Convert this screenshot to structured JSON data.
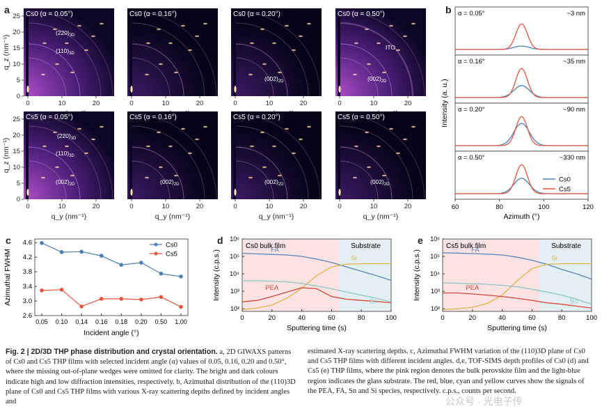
{
  "figure": {
    "panel_labels": {
      "a": "a",
      "b": "b",
      "c": "c",
      "d": "d",
      "e": "e"
    },
    "giwaxs": {
      "x_tick_labels": [
        "0",
        "10",
        "20"
      ],
      "y_tick_labels": [
        "0",
        "5",
        "10",
        "15",
        "20",
        "25"
      ],
      "xlabel": "q_y (nm⁻¹)",
      "ylabel": "q_z (nm⁻¹)",
      "top_row_titles": [
        "Cs0 (α = 0.05°)",
        "Cs0 (α = 0.16°)",
        "Cs0 (α = 0.20°)",
        "Cs0 (α = 0.50°)"
      ],
      "bottom_row_titles": [
        "Cs5 (α = 0.05°)",
        "Cs5 (α = 0.16°)",
        "Cs5 (α = 0.20°)",
        "Cs5 (α = 0.50°)"
      ],
      "annotations": {
        "a220": "(220)3D",
        "a110": "(110)3D",
        "a002": "(002)2D",
        "ito": "ITO"
      }
    },
    "azimuth": {
      "xlabel": "Azimuth (°)",
      "ylabel": "Intensity (a. u.)",
      "x_ticks": [
        "60",
        "80",
        "100",
        "120"
      ],
      "panels": [
        {
          "alpha": "α = 0.05°",
          "depth": "~3 nm"
        },
        {
          "alpha": "α = 0.16°",
          "depth": "~35 nm"
        },
        {
          "alpha": "α = 0.20°",
          "depth": "~90 nm"
        },
        {
          "alpha": "α = 0.50°",
          "depth": "~330 nm"
        }
      ],
      "legend": [
        "Cs0",
        "Cs5"
      ],
      "colors": {
        "Cs0": "#4a7fb8",
        "Cs5": "#e8533c"
      }
    },
    "fwhm_chart": {
      "ylabel": "Azimuthal FWHM",
      "xlabel": "Incident angle (°)",
      "x_ticks": [
        "0.05",
        "0.10",
        "0.14",
        "0.16",
        "0.18",
        "0.20",
        "0.50",
        "1.00"
      ],
      "y_ticks": [
        "2.6",
        "3.0",
        "3.4",
        "3.8",
        "4.2",
        "4.6"
      ]
    },
    "tofsims": [
      {
        "label": "Cs0 bulk film",
        "substrate": "Substrate"
      },
      {
        "label": "Cs5 bulk film",
        "substrate": "Substrate"
      }
    ],
    "tofsims_axes": {
      "xlabel": "Sputtering time (s)",
      "ylabel": "Intensity (c.p.s.)",
      "x_ticks": [
        "0",
        "20",
        "40",
        "60",
        "80",
        "100"
      ],
      "y_ticks": [
        "10²",
        "10³",
        "10⁴",
        "10⁵",
        "10⁶"
      ],
      "species": {
        "FA": "FA",
        "Si": "Si",
        "PEA": "PEA",
        "Sn": "Sn"
      }
    }
  },
  "chart_data": [
    {
      "type": "line",
      "title": "",
      "xlabel": "Incident angle (°)",
      "ylabel": "Azimuthal FWHM",
      "categories": [
        "0.05",
        "0.10",
        "0.14",
        "0.16",
        "0.18",
        "0.20",
        "0.50",
        "1.00"
      ],
      "ylim": [
        2.6,
        4.7
      ],
      "legend": "top-right",
      "series": [
        {
          "name": "Cs0",
          "color": "#4a7fb8",
          "values": [
            4.59,
            4.34,
            4.35,
            4.24,
            3.99,
            4.05,
            3.75,
            3.67
          ]
        },
        {
          "name": "Cs5",
          "color": "#e8533c",
          "values": [
            3.29,
            3.31,
            2.85,
            3.06,
            3.06,
            3.04,
            3.11,
            2.84
          ]
        }
      ]
    },
    {
      "type": "line",
      "title": "",
      "xlabel": "Sputtering time (s)",
      "ylabel": "Intensity (c.p.s.)",
      "yscale": "log",
      "xlim": [
        0,
        100
      ],
      "ylim": [
        70,
        1000000
      ],
      "x": [
        0,
        10,
        20,
        30,
        40,
        50,
        60,
        70,
        80,
        90,
        100
      ],
      "series": [
        {
          "name": "FA",
          "color": "#5a86b4",
          "values": [
            150000,
            140000,
            130000,
            120000,
            100000,
            70000,
            45000,
            25000,
            14000,
            8000,
            4200
          ]
        },
        {
          "name": "Si",
          "color": "#e3b34a",
          "values": [
            90,
            110,
            160,
            400,
            1500,
            8000,
            25000,
            35000,
            38000,
            38000,
            38000
          ]
        },
        {
          "name": "PEA",
          "color": "#d8463a",
          "values": [
            250,
            300,
            500,
            900,
            1600,
            1400,
            500,
            350,
            300,
            260,
            220
          ]
        },
        {
          "name": "Sn",
          "color": "#8fc4c2",
          "values": [
            4000,
            4000,
            3800,
            3500,
            2800,
            2000,
            1400,
            900,
            600,
            400,
            250
          ]
        }
      ]
    },
    {
      "type": "line",
      "title": "",
      "xlabel": "Sputtering time (s)",
      "ylabel": "Intensity (c.p.s.)",
      "yscale": "log",
      "xlim": [
        0,
        100
      ],
      "ylim": [
        70,
        1000000
      ],
      "x": [
        0,
        10,
        20,
        30,
        40,
        50,
        60,
        70,
        80,
        90,
        100
      ],
      "series": [
        {
          "name": "FA",
          "color": "#5a86b4",
          "values": [
            160000,
            155000,
            145000,
            135000,
            120000,
            90000,
            60000,
            35000,
            18000,
            10000,
            5000
          ]
        },
        {
          "name": "Si",
          "color": "#e3b34a",
          "values": [
            90,
            100,
            120,
            200,
            600,
            4000,
            20000,
            35000,
            38000,
            38000,
            38000
          ]
        },
        {
          "name": "PEA",
          "color": "#d8463a",
          "values": [
            800,
            800,
            700,
            600,
            500,
            400,
            300,
            220,
            180,
            140,
            110
          ]
        },
        {
          "name": "Sn",
          "color": "#8fc4c2",
          "values": [
            3000,
            2900,
            2700,
            2500,
            2200,
            1800,
            1300,
            900,
            600,
            350,
            180
          ]
        }
      ]
    }
  ],
  "caption": {
    "fig_head": "Fig. 2 | 2D/3D THP phase distribution and crystal orientation.",
    "col1": " a, 2D GIWAXS patterns of Cs0 and Cs5 THP films with selected incident angle (α) values of 0.05, 0.16, 0.20 and 0.50°, where the missing out-of-plane wedges were omitted for clarity. The bright and dark colours indicate high and low diffraction intensities, respectively. b, Azimuthal distribution of the (110)3D plane of Cs0 and Cs5 THP films with various X-ray scattering depths defined by incident angles and",
    "col2": "estimated X-ray scattering depths. c, Azimuthal FWHM variation of the (110)3D plane of Cs0 and Cs5 THP films with different incident angles. d,e, TOF-SIMS depth profiles of Cs0 (d) and Cs5 (e) THP films, where the pink region denotes the bulk perovskite film and the light-blue region indicates the glass substrate. The red, blue, cyan and yellow curves show the signals of the PEA, FA, Sn and Si species, respectively. c.p.s., counts per second.",
    "watermark": "公众号 · 光电子传"
  }
}
